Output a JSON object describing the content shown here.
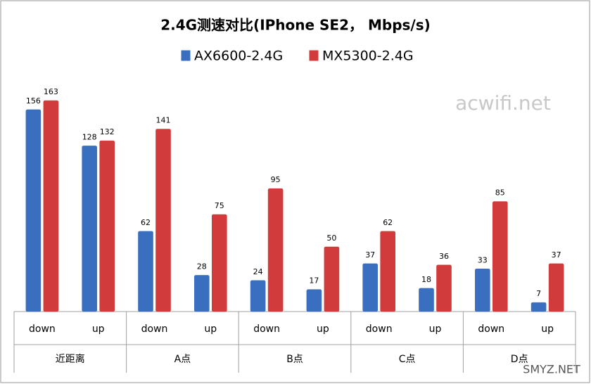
{
  "chart_data": {
    "type": "bar",
    "title": "2.4G测速对比(IPhone SE2， Mbps/s)",
    "categories": [
      "down",
      "up",
      "down",
      "up",
      "down",
      "up",
      "down",
      "up",
      "down",
      "up"
    ],
    "groups": [
      "近距离",
      "A点",
      "B点",
      "C点",
      "D点"
    ],
    "series": [
      {
        "name": "AX6600-2.4G",
        "color": "#3a6fc0",
        "values": [
          156,
          128,
          62,
          28,
          24,
          17,
          37,
          18,
          33,
          7
        ]
      },
      {
        "name": "MX5300-2.4G",
        "color": "#d23b3b",
        "values": [
          163,
          132,
          141,
          75,
          95,
          50,
          62,
          36,
          85,
          37
        ]
      }
    ],
    "watermarks": [
      "acwifi.net",
      "SMYZ.NET"
    ]
  }
}
